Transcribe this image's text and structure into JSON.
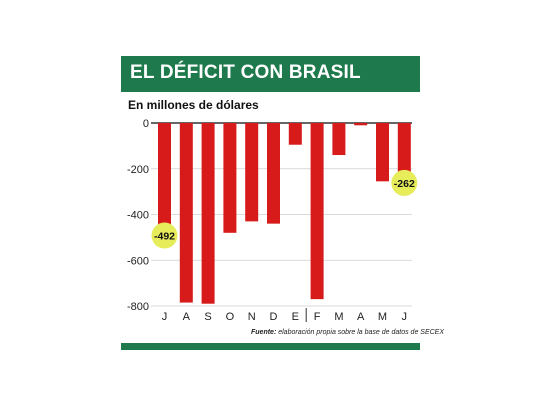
{
  "header": {
    "title": "EL DÉFICIT CON BRASIL",
    "subtitle": "En millones de dólares"
  },
  "source": {
    "label": "Fuente:",
    "text": "elaboración propia sobre la base de datos de SECEX"
  },
  "colors": {
    "accent": "#1e7a4c",
    "bar": "#d71a1a",
    "highlight": "#e6ec5a"
  },
  "chart_data": {
    "type": "bar",
    "categories": [
      "J",
      "A",
      "S",
      "O",
      "N",
      "D",
      "E",
      "F",
      "M",
      "A",
      "M",
      "J"
    ],
    "values": [
      -492,
      -785,
      -790,
      -480,
      -430,
      -440,
      -95,
      -770,
      -140,
      -10,
      -255,
      -262
    ],
    "yticks": [
      0,
      -200,
      -400,
      -600,
      -800
    ],
    "ylim": [
      -800,
      0
    ],
    "annotations": [
      {
        "index": 0,
        "label": "-492"
      },
      {
        "index": 11,
        "label": "-262"
      }
    ],
    "separator_after_index": 6,
    "grid": true
  }
}
